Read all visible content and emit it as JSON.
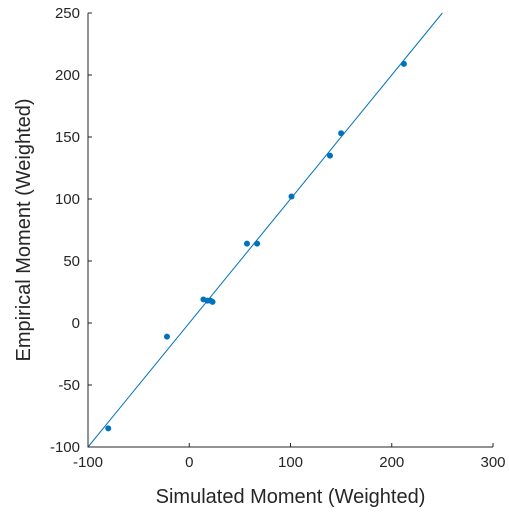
{
  "chart_data": {
    "type": "scatter",
    "title": "",
    "xlabel": "Simulated Moment (Weighted)",
    "ylabel": "Empirical Moment (Weighted)",
    "xlim": [
      -100,
      300
    ],
    "ylim": [
      -100,
      250
    ],
    "xticks": [
      -100,
      0,
      100,
      200,
      300
    ],
    "yticks": [
      -100,
      -50,
      0,
      50,
      100,
      150,
      200,
      250
    ],
    "xtick_labels": [
      "-100",
      "0",
      "100",
      "200",
      "300"
    ],
    "ytick_labels": [
      "-100",
      "-50",
      "0",
      "50",
      "100",
      "150",
      "200",
      "250"
    ],
    "grid": false,
    "reference_line": {
      "type": "y=x",
      "from": -100,
      "to": 250
    },
    "color": "#0072BD",
    "points": [
      {
        "x": -80,
        "y": -85
      },
      {
        "x": -22,
        "y": -11
      },
      {
        "x": 14,
        "y": 19
      },
      {
        "x": 18,
        "y": 18
      },
      {
        "x": 21,
        "y": 18
      },
      {
        "x": 23,
        "y": 17
      },
      {
        "x": 57,
        "y": 64
      },
      {
        "x": 67,
        "y": 64
      },
      {
        "x": 101,
        "y": 102
      },
      {
        "x": 139,
        "y": 135
      },
      {
        "x": 150,
        "y": 153
      },
      {
        "x": 212,
        "y": 209
      }
    ]
  }
}
